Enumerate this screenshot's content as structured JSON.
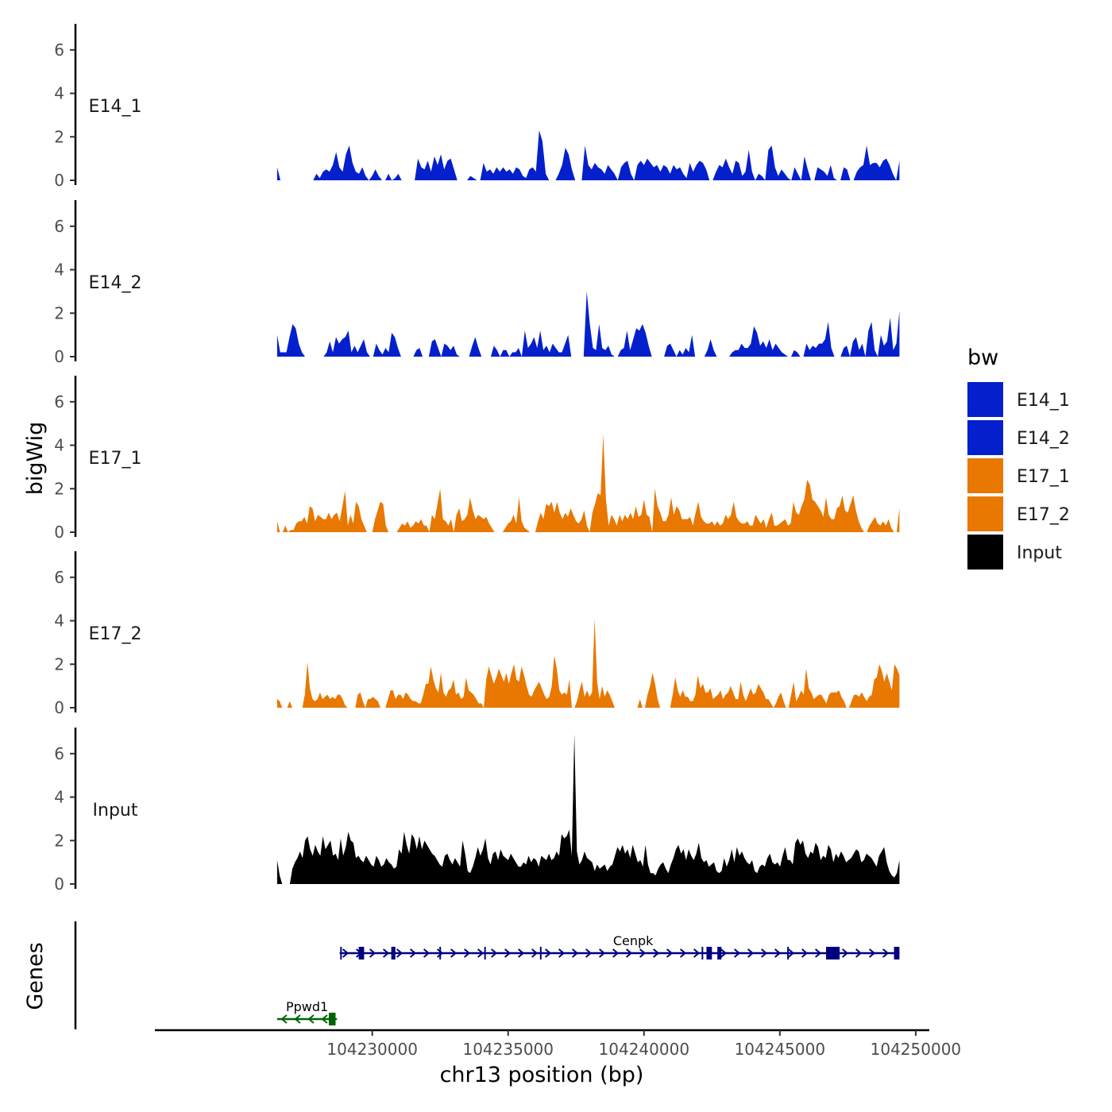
{
  "chart_data": {
    "type": "area",
    "xlabel": "chr13 position (bp)",
    "ylabel": "bigWig",
    "genes_label": "Genes",
    "xlim": [
      104222000,
      104250500
    ],
    "x_ticks": [
      104230000,
      104235000,
      104240000,
      104245000,
      104250000
    ],
    "x_tick_labels": [
      "104230000",
      "104235000",
      "104240000",
      "104245000",
      "104250000"
    ],
    "ylim": [
      0,
      7.2
    ],
    "y_ticks": [
      0,
      2,
      4,
      6
    ],
    "y_tick_labels": [
      "0",
      "2",
      "4",
      "6"
    ],
    "bin_range": [
      104226500,
      104249400
    ],
    "legend": {
      "title": "bw",
      "entries": [
        {
          "label": "E14_1",
          "color": "#0320CC"
        },
        {
          "label": "E14_2",
          "color": "#0320CC"
        },
        {
          "label": "E17_1",
          "color": "#E87800"
        },
        {
          "label": "E17_2",
          "color": "#E87800"
        },
        {
          "label": "Input",
          "color": "#000000"
        }
      ]
    },
    "series": [
      {
        "name": "E14_1",
        "color": "#0320CC",
        "values": [
          0.6,
          0,
          0,
          0,
          0,
          0,
          0,
          0,
          0,
          0,
          0,
          0,
          0.3,
          0.1,
          0.4,
          0.5,
          0.4,
          0.7,
          1.3,
          0.6,
          0.4,
          1.2,
          1.6,
          0.8,
          0.4,
          0.3,
          0.6,
          0.2,
          0,
          0.2,
          0.5,
          0.2,
          0,
          0,
          0.3,
          0,
          0.1,
          0.3,
          0,
          0,
          0,
          0,
          0,
          1,
          0.6,
          0.5,
          0.9,
          0.4,
          1.1,
          0.7,
          1.2,
          0.5,
          0.9,
          1,
          0.5,
          0,
          0,
          0,
          0,
          0.2,
          0.1,
          0,
          0,
          0.8,
          0.4,
          0.5,
          0.3,
          0.6,
          0.4,
          0.6,
          0.4,
          0.5,
          0.3,
          0.6,
          0.5,
          0.2,
          0.1,
          0.5,
          0.6,
          0.4,
          2.3,
          1.8,
          0.3,
          0,
          0,
          0,
          0.3,
          0.7,
          1.5,
          1.2,
          0.5,
          0,
          0,
          0,
          1.6,
          0.7,
          0.5,
          0.8,
          0.6,
          0.5,
          0.3,
          0.7,
          0.5,
          0.3,
          0,
          0.6,
          0.8,
          0.9,
          0.3,
          0,
          0.7,
          0.9,
          0.7,
          1,
          0.8,
          0.6,
          0.7,
          0.4,
          0.7,
          0.6,
          0.3,
          0.7,
          0.5,
          0.6,
          0.3,
          0.1,
          0.8,
          0.4,
          0.7,
          0.9,
          0.8,
          0.5,
          0,
          0,
          0.4,
          0.7,
          0.6,
          1,
          0.6,
          0.3,
          0.9,
          0.8,
          0.2,
          0.4,
          1.4,
          0.4,
          0,
          0.3,
          0.2,
          0,
          1.4,
          1.6,
          0.6,
          0.2,
          0.5,
          0.3,
          0.1,
          0,
          0.6,
          0.3,
          0,
          1.1,
          0.5,
          0,
          0,
          0.6,
          0.5,
          0.4,
          0.2,
          0.7,
          0.1,
          0,
          0,
          0.6,
          0.5,
          0,
          0,
          0.4,
          0.6,
          0.7,
          1.6,
          0.7,
          0.8,
          0.8,
          0.6,
          0.9,
          1,
          0.7,
          0.3,
          0,
          0.9
        ]
      },
      {
        "name": "E14_2",
        "color": "#0320CC",
        "values": [
          1,
          0.2,
          0.2,
          0.2,
          0.9,
          1.5,
          1.3,
          0.6,
          0.2,
          0,
          0,
          0,
          0,
          0,
          0,
          0,
          0.2,
          0.7,
          0.2,
          0.9,
          0.6,
          0.8,
          0.9,
          1.2,
          0.2,
          0.5,
          0.2,
          0.5,
          0.8,
          0.2,
          0,
          0,
          0.6,
          0.3,
          0.1,
          0.4,
          0.2,
          1.1,
          0.9,
          0.4,
          0,
          0,
          0,
          0,
          0,
          0.3,
          0.4,
          0,
          0,
          0,
          0.7,
          0.8,
          0.4,
          0,
          0.6,
          0.5,
          0.3,
          0.5,
          0.1,
          0,
          0,
          0,
          0,
          0.5,
          0.9,
          0.4,
          0,
          0,
          0,
          0,
          0.5,
          0.3,
          0,
          0.3,
          0.3,
          0,
          0.2,
          0.2,
          0.4,
          0,
          1.2,
          0.4,
          0.6,
          0.9,
          0.4,
          1.2,
          0.3,
          0.5,
          0.2,
          0.6,
          0.4,
          0.2,
          0.2,
          0.6,
          1,
          0,
          0,
          0,
          0,
          0,
          3,
          1.5,
          0.4,
          0.3,
          1.5,
          0.4,
          0.3,
          0.5,
          0.1,
          0,
          0,
          0.3,
          0.4,
          1.2,
          0.3,
          0.8,
          1.3,
          1.2,
          1.5,
          1.1,
          0.5,
          0,
          0,
          0,
          0,
          0,
          0.5,
          0.6,
          0.3,
          0,
          0.3,
          0.1,
          0.4,
          0.2,
          1,
          0,
          0,
          0,
          0,
          0.3,
          0.8,
          0.3,
          0,
          0,
          0,
          0,
          0,
          0.2,
          0.3,
          0.3,
          0.6,
          0.4,
          0.4,
          0.6,
          1.4,
          1.1,
          0.5,
          0.7,
          0.4,
          0.8,
          0.3,
          0.6,
          0.4,
          0.2,
          0.1,
          0,
          0,
          0.3,
          0.2,
          0,
          0,
          0.6,
          0.3,
          0.5,
          0.4,
          0.6,
          0.6,
          0.8,
          1.6,
          0.4,
          0,
          0,
          0,
          0.4,
          0.5,
          0,
          0.7,
          0.9,
          0.3,
          0.6,
          0,
          1.2,
          1.6,
          0.3,
          0,
          1,
          0.5,
          0.7,
          1.8,
          0.3,
          0.6,
          2.1
        ]
      },
      {
        "name": "E17_1",
        "color": "#E87800",
        "values": [
          0.5,
          0,
          0,
          0.3,
          0,
          0.1,
          0.1,
          0.4,
          0.5,
          0.5,
          0.7,
          0.4,
          1.2,
          1.1,
          0.5,
          0.8,
          0.7,
          0.6,
          0.6,
          0.9,
          0.6,
          0.8,
          0.9,
          0.5,
          1.2,
          1.9,
          0.3,
          0.8,
          0.4,
          1.4,
          1.2,
          0.6,
          0.3,
          0,
          0,
          0,
          0.6,
          1,
          1.4,
          1.3,
          0.3,
          0,
          0,
          0,
          0,
          0.2,
          0.4,
          0.3,
          0.5,
          0.2,
          0.3,
          0.5,
          0.4,
          0.6,
          0.3,
          0.3,
          0,
          0.8,
          0.6,
          1.3,
          2,
          0.6,
          0.5,
          0.3,
          0.6,
          0,
          0.8,
          1.1,
          0.5,
          0.6,
          0.8,
          1.6,
          1,
          0.6,
          0.8,
          0.7,
          0.6,
          0.7,
          0.4,
          0.2,
          0,
          0,
          0,
          0,
          0.2,
          0.4,
          0.5,
          0.8,
          0.4,
          1.6,
          0.5,
          0.2,
          0.1,
          0,
          0,
          0,
          0.5,
          0.9,
          0.6,
          1.3,
          1.2,
          1.4,
          0.9,
          1.4,
          0.9,
          0.6,
          0.9,
          0.7,
          1.1,
          0.8,
          0.5,
          0.4,
          0.6,
          1,
          0.3,
          0,
          0.9,
          1.3,
          1.8,
          1.7,
          4.5,
          1.5,
          0.3,
          0.8,
          0.6,
          0.3,
          0.8,
          0.5,
          0.8,
          0.6,
          0.9,
          0.6,
          1.2,
          0.7,
          0.8,
          1.5,
          0.8,
          0.7,
          0,
          2,
          1.2,
          0.9,
          0.5,
          0.5,
          0.8,
          1.6,
          0.8,
          1.2,
          1,
          0.6,
          0.6,
          0.6,
          0.7,
          0.3,
          0.9,
          1.4,
          0.7,
          0.5,
          0.4,
          0.4,
          0.5,
          0.3,
          0.5,
          0.3,
          0.4,
          0.8,
          0.6,
          0.8,
          1.4,
          0.7,
          0.5,
          0.4,
          0.4,
          0.5,
          0.3,
          0.3,
          0.8,
          0.6,
          0.4,
          0.6,
          0.2,
          0.6,
          0.9,
          0.3,
          0.3,
          0.4,
          0.5,
          0.6,
          0.3,
          0.4,
          1.4,
          0.9,
          0.8,
          1.2,
          1.5,
          2.4,
          2.2,
          1.5,
          1.4,
          1.2,
          1,
          0.7,
          1.6,
          0.8,
          0.6,
          0.6,
          1.1,
          1.2,
          1.7,
          1,
          0.9,
          1.3,
          1.7,
          1,
          0.5,
          0.2,
          0,
          0,
          0.3,
          0.5,
          0.7,
          0.4,
          0.3,
          0.5,
          0.3,
          0.6,
          0.2,
          0,
          0,
          1.1
        ]
      },
      {
        "name": "E17_2",
        "color": "#E87800",
        "values": [
          0.4,
          0.3,
          0,
          0,
          0,
          0.3,
          0,
          0,
          0,
          0,
          0,
          0.6,
          2.1,
          0.9,
          0.4,
          0.3,
          0.4,
          0.7,
          0.4,
          0.5,
          0.6,
          0.4,
          0.5,
          0.4,
          0.6,
          0.6,
          0.4,
          0.1,
          0,
          0,
          0,
          0,
          0.6,
          0.7,
          0.3,
          0,
          0.4,
          0.4,
          0.5,
          0.4,
          0.3,
          0,
          0,
          0,
          0.4,
          0.8,
          0.8,
          0.4,
          0.6,
          0.6,
          0.4,
          0.7,
          0.6,
          0.4,
          0.3,
          0.3,
          0.2,
          0.2,
          0.6,
          1.1,
          1.1,
          1.9,
          1.3,
          0.9,
          0.7,
          1.6,
          0.7,
          0.5,
          0.8,
          0.9,
          1.3,
          0.6,
          0.7,
          0.4,
          0.5,
          1.4,
          0.8,
          0.7,
          0.6,
          0.4,
          0.2,
          0.2,
          0,
          1.3,
          1.9,
          1.5,
          1.1,
          1.4,
          1.8,
          1.5,
          1.2,
          1.6,
          1.1,
          1.6,
          2,
          1.3,
          1.2,
          1.9,
          1.5,
          1,
          0.6,
          0.5,
          0.8,
          1,
          1.2,
          0.9,
          0.6,
          0.4,
          0.5,
          1,
          2.4,
          1.8,
          0.8,
          0.6,
          0.7,
          0.6,
          1.3,
          0,
          0,
          0.3,
          0.8,
          1.2,
          0.5,
          0.8,
          0.5,
          0.7,
          4.1,
          1.2,
          0.4,
          1,
          0.5,
          0.8,
          0.6,
          0.3,
          0,
          0,
          0,
          0,
          0,
          0,
          0,
          0,
          0,
          0,
          0.4,
          0,
          0,
          0.6,
          1,
          1.6,
          1.1,
          0.4,
          0,
          0,
          0,
          0,
          0,
          0.6,
          1.4,
          0.8,
          0.5,
          0.8,
          0.5,
          0.5,
          0.3,
          0.3,
          0.6,
          1.5,
          0.9,
          1.1,
          0.7,
          0.7,
          0.9,
          0.4,
          0.5,
          0.6,
          0.8,
          0.4,
          0.6,
          0.7,
          1,
          0.7,
          0.4,
          0.4,
          1.2,
          0.6,
          0.3,
          0.6,
          0.9,
          0.6,
          0.7,
          1.1,
          0.9,
          0.7,
          0.4,
          0.4,
          0.2,
          0,
          0.2,
          0.5,
          0.7,
          0.3,
          0,
          0,
          0.6,
          1.2,
          0.3,
          0.5,
          0.8,
          0.6,
          1.8,
          0.9,
          0.7,
          0.4,
          0.5,
          0.6,
          0.6,
          0.4,
          0.2,
          0.6,
          0.7,
          0.7,
          0.7,
          0.8,
          0.5,
          0.3,
          0,
          0,
          0.3,
          0.6,
          0.6,
          0.5,
          0.7,
          0.5,
          0.3,
          0.5,
          0.6,
          1.3,
          1.4,
          2,
          1.7,
          1.2,
          1.6,
          1.2,
          0.8,
          2,
          1.8,
          1.5
        ]
      },
      {
        "name": "Input",
        "color": "#000000",
        "values": [
          1.1,
          0.4,
          0,
          0,
          0,
          0,
          0.7,
          1,
          1.2,
          1.5,
          1.2,
          2,
          2.2,
          1.6,
          1.3,
          1.8,
          1.5,
          1.3,
          2.2,
          1.6,
          1.8,
          2,
          1.3,
          1.4,
          1.1,
          2.1,
          1.3,
          1.7,
          2.4,
          2,
          1.9,
          1.2,
          1.3,
          1.1,
          1,
          1.3,
          1.1,
          0.9,
          0.8,
          1.3,
          1.1,
          0.8,
          0.9,
          1.2,
          1,
          0.9,
          0.7,
          0.8,
          1.6,
          1.4,
          2.4,
          1.8,
          1.4,
          2.3,
          2.1,
          1.6,
          2.2,
          1.6,
          2,
          1.8,
          1.6,
          1.4,
          1.3,
          1.1,
          0.9,
          0.8,
          1.3,
          1.4,
          1.1,
          0.9,
          1.2,
          1,
          0.8,
          2,
          1.4,
          0.6,
          0.5,
          0.8,
          1.2,
          1.7,
          1.3,
          1.6,
          2.1,
          1.2,
          0.9,
          1.4,
          1.5,
          1.1,
          1.6,
          1.3,
          1.2,
          1.1,
          1.4,
          1.2,
          1,
          0.8,
          0.8,
          1,
          0.9,
          1.3,
          1,
          1.2,
          1.1,
          0.8,
          1.3,
          1.2,
          1.1,
          1.4,
          1.1,
          1.2,
          1.5,
          1.3,
          2.3,
          2.1,
          2.2,
          2.5,
          1.3,
          6.9,
          1.5,
          0.9,
          1.1,
          1.5,
          1.2,
          1.1,
          1,
          0.6,
          0.9,
          0.7,
          0.8,
          0.9,
          0.6,
          0.8,
          0.9,
          1.3,
          1.7,
          1.5,
          1.8,
          1.4,
          1.6,
          1.2,
          1.8,
          1.4,
          1,
          1.1,
          0.8,
          1.8,
          0.9,
          0.5,
          0.5,
          0.4,
          0.7,
          0.9,
          1,
          0.7,
          0.5,
          0.9,
          1.2,
          1.6,
          1.8,
          1.4,
          1.6,
          1.1,
          1.6,
          1.3,
          1.1,
          1.4,
          1.9,
          1.2,
          1,
          1.1,
          0.8,
          0.9,
          1,
          0.6,
          0.5,
          0.6,
          1.2,
          0.8,
          1.1,
          1.6,
          1,
          1.7,
          1.3,
          1.5,
          1.2,
          1,
          0.9,
          1.1,
          0.6,
          0.5,
          0.8,
          0.9,
          0.8,
          1.2,
          1.4,
          1,
          0.9,
          1,
          0.8,
          1.3,
          1.7,
          1.1,
          1.1,
          0.9,
          1.9,
          2.1,
          1.8,
          2,
          1.4,
          1.2,
          1.5,
          1.4,
          1.9,
          1.7,
          1.1,
          1.3,
          1.2,
          1.8,
          1.6,
          1,
          1.4,
          1.2,
          1.5,
          1.3,
          1,
          1.1,
          1.2,
          1.4,
          1.6,
          1.5,
          1,
          1.1,
          1.4,
          1.3,
          1.2,
          1,
          0.8,
          1.3,
          1.5,
          1.7,
          1,
          0.6,
          0.4,
          0.3,
          0.5,
          1.1
        ]
      }
    ],
    "gene_tracks": [
      {
        "name": "Cenpk",
        "strand": "+",
        "color": "#00007F",
        "start": 104228800,
        "end": 104249400,
        "exons": [
          [
            104229500,
            104229700
          ],
          [
            104230700,
            104230850
          ],
          [
            104242300,
            104242500
          ],
          [
            104242700,
            104242850
          ],
          [
            104246700,
            104247200
          ],
          [
            104249200,
            104249400
          ]
        ],
        "markers": [
          104228850,
          104229650,
          104230750,
          104232500,
          104234150,
          104236200,
          104242150,
          104242350,
          104245300,
          104246750,
          104249300
        ]
      },
      {
        "name": "Ppwd1",
        "strand": "-",
        "color": "#006400",
        "start": 104226500,
        "end": 104228700,
        "exons": [
          [
            104228400,
            104228650
          ]
        ],
        "markers": [
          104228500
        ]
      }
    ]
  }
}
